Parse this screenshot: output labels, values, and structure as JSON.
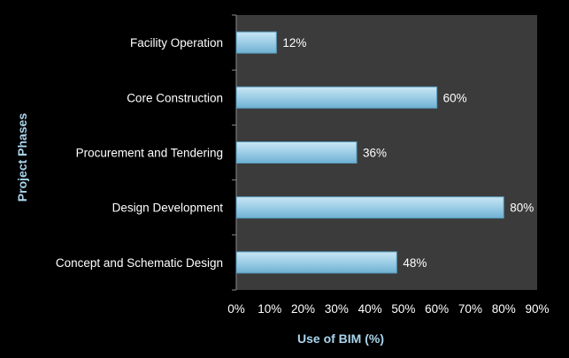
{
  "chart_data": {
    "type": "bar",
    "orientation": "horizontal",
    "categories": [
      "Facility Operation",
      "Core Construction",
      "Procurement and Tendering",
      "Design Development",
      "Concept and Schematic Design"
    ],
    "values": [
      12,
      60,
      36,
      80,
      48
    ],
    "value_labels": [
      "12%",
      "60%",
      "36%",
      "80%",
      "48%"
    ],
    "xlabel": "Use of BIM (%)",
    "ylabel": "Project Phases",
    "xlim": [
      0,
      90
    ],
    "x_ticks": [
      0,
      10,
      20,
      30,
      40,
      50,
      60,
      70,
      80,
      90
    ],
    "x_tick_labels": [
      "0%",
      "10%",
      "20%",
      "30%",
      "40%",
      "50%",
      "60%",
      "70%",
      "80%",
      "90%"
    ],
    "grid": false,
    "legend": "none",
    "colors": {
      "page_background": "#000000",
      "plot_background": "#3b3b3b",
      "bar_fill_top": "#c9e6f4",
      "bar_fill_bottom": "#6fb1d2",
      "bar_edge": "#5a9cbd",
      "axis_title_color": "#a9d4ec",
      "text_color": "#ffffff"
    }
  }
}
